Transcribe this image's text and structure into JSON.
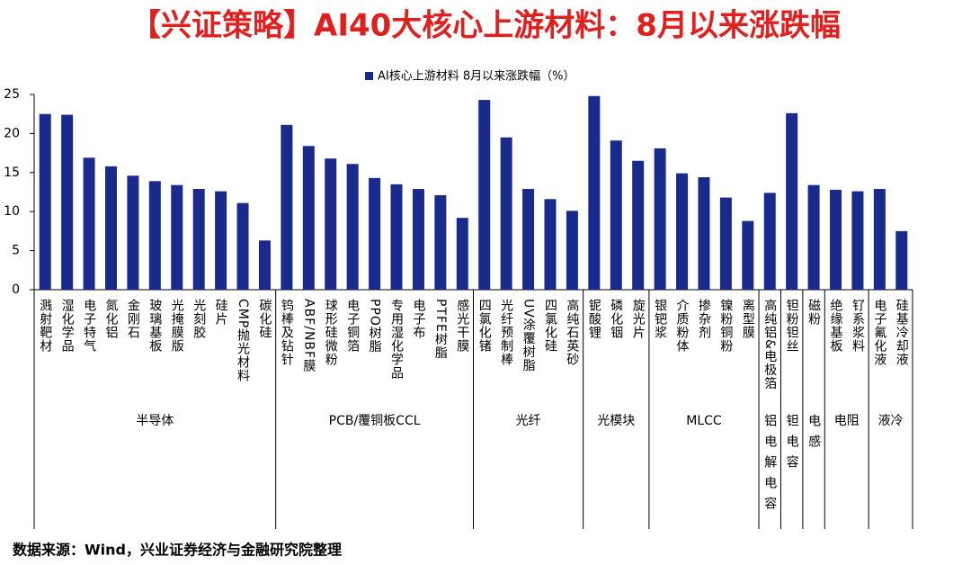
{
  "chart_data": {
    "type": "bar",
    "title": "【兴证策略】AI40大核心上游材料：8月以来涨跌幅",
    "source": "数据来源：Wind，兴业证券经济与金融研究院整理",
    "groups": [
      {
        "name": "半导体",
        "categories": [
          "溅射靶材",
          "湿化学品",
          "电子特气",
          "氮化铝",
          "金刚石",
          "玻璃基板",
          "光掩膜版",
          "光刻胶",
          "硅片",
          "CMP抛光材料",
          "碳化硅"
        ]
      },
      {
        "name": "PCB/覆铜板CCL",
        "categories": [
          "钨棒及钻针",
          "ABF/NBF膜",
          "球形硅微粉",
          "电子铜箔",
          "PPO树脂",
          "专用湿化学品",
          "电子布",
          "PTFE树脂",
          "感光干膜"
        ]
      },
      {
        "name": "光纤",
        "categories": [
          "四氯化锗",
          "光纤预制棒",
          "UV涂覆树脂",
          "四氯化硅",
          "高纯石英砂"
        ]
      },
      {
        "name": "光模块",
        "categories": [
          "铌酸锂",
          "磷化铟",
          "旋光片"
        ]
      },
      {
        "name": "MLCC",
        "categories": [
          "银钯浆",
          "介质粉体",
          "掺杂剂",
          "镍粉铜粉",
          "离型膜"
        ]
      },
      {
        "name": "铝电解电容",
        "categories": [
          "高纯铝&电极箔"
        ]
      },
      {
        "name": "钽电容",
        "categories": [
          "钽粉钽丝"
        ]
      },
      {
        "name": "电感",
        "categories": [
          "磁粉"
        ]
      },
      {
        "name": "电阻",
        "categories": [
          "绝缘基板",
          "钌系浆料"
        ]
      },
      {
        "name": "液冷",
        "categories": [
          "电子氟化液",
          "硅基冷却液"
        ]
      }
    ],
    "series": [
      {
        "name": "AI核心上游材料 8月以来涨跌幅（%）",
        "color": "#1a2a8c",
        "values": [
          22.5,
          22.4,
          16.9,
          15.8,
          14.6,
          13.9,
          13.4,
          12.9,
          12.6,
          11.1,
          6.3,
          21.1,
          18.4,
          16.8,
          16.1,
          14.3,
          13.5,
          12.9,
          12.1,
          9.2,
          24.3,
          19.5,
          12.9,
          11.6,
          10.1,
          24.8,
          19.1,
          16.5,
          18.1,
          14.9,
          14.4,
          11.8,
          8.8,
          12.4,
          22.6,
          13.4,
          12.8,
          12.6,
          12.9,
          7.5
        ]
      }
    ],
    "ylim": [
      0,
      25
    ],
    "yticks": [
      0,
      5,
      10,
      15,
      20,
      25
    ],
    "grid": false
  }
}
